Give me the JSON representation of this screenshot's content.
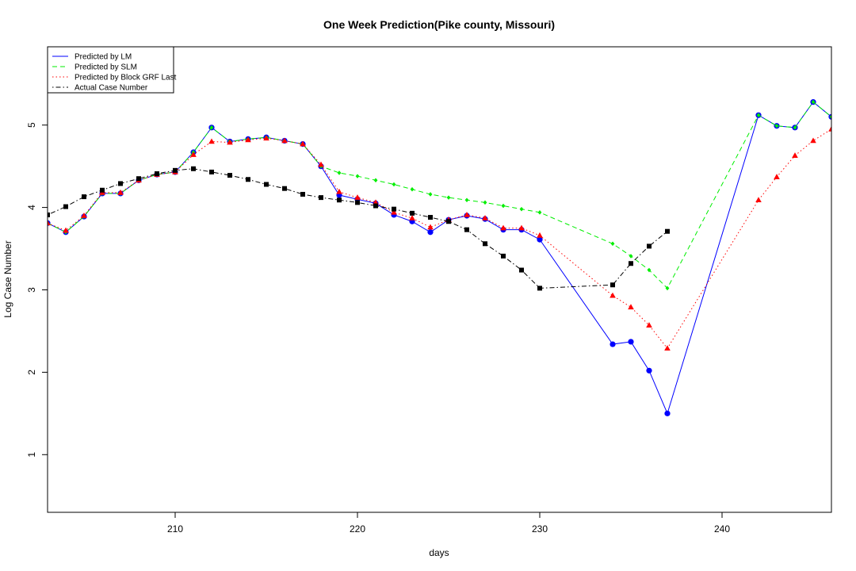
{
  "chart_data": {
    "type": "line",
    "title": "One Week Prediction(Pike county, Missouri)",
    "xlabel": "days",
    "ylabel": "Log Case Number",
    "xlim": [
      203,
      246
    ],
    "ylim": [
      0.3,
      5.95
    ],
    "xticks": [
      210,
      220,
      230,
      240
    ],
    "yticks": [
      1,
      2,
      3,
      4,
      5
    ],
    "grid": false,
    "legend_position": "top-left",
    "series": [
      {
        "name": "Predicted by LM",
        "color": "#0000ff",
        "line_style": "solid",
        "marker": "circle",
        "x": [
          203,
          204,
          205,
          206,
          207,
          208,
          209,
          210,
          211,
          212,
          213,
          214,
          215,
          216,
          217,
          218,
          219,
          220,
          221,
          222,
          223,
          224,
          225,
          226,
          227,
          228,
          229,
          230,
          234,
          235,
          236,
          237,
          242,
          243,
          244,
          245,
          246
        ],
        "y": [
          3.81,
          3.7,
          3.89,
          4.17,
          4.17,
          4.33,
          4.4,
          4.43,
          4.67,
          4.97,
          4.8,
          4.83,
          4.85,
          4.81,
          4.77,
          4.5,
          4.15,
          4.1,
          4.05,
          3.91,
          3.83,
          3.7,
          3.85,
          3.9,
          3.86,
          3.73,
          3.73,
          3.61,
          2.34,
          2.37,
          2.02,
          1.5,
          5.12,
          4.99,
          4.97,
          5.28,
          5.1
        ]
      },
      {
        "name": "Predicted by SLM",
        "color": "#00ee00",
        "line_style": "dashed",
        "marker": "diamond",
        "x": [
          203,
          204,
          205,
          206,
          207,
          208,
          209,
          210,
          211,
          212,
          213,
          214,
          215,
          216,
          217,
          218,
          219,
          220,
          221,
          222,
          223,
          224,
          225,
          226,
          227,
          228,
          229,
          230,
          234,
          235,
          236,
          237,
          242,
          243,
          244,
          245,
          246
        ],
        "y": [
          3.81,
          3.7,
          3.89,
          4.17,
          4.17,
          4.33,
          4.4,
          4.43,
          4.67,
          4.97,
          4.8,
          4.83,
          4.85,
          4.81,
          4.77,
          4.5,
          4.42,
          4.38,
          4.33,
          4.28,
          4.22,
          4.16,
          4.12,
          4.09,
          4.06,
          4.02,
          3.98,
          3.94,
          3.56,
          3.41,
          3.24,
          3.02,
          5.12,
          4.99,
          4.97,
          5.28,
          5.1
        ]
      },
      {
        "name": "Predicted by Block GRF Last",
        "color": "#ff0000",
        "line_style": "dotted",
        "marker": "triangle",
        "x": [
          203,
          204,
          205,
          206,
          207,
          208,
          209,
          210,
          211,
          212,
          213,
          214,
          215,
          216,
          217,
          218,
          219,
          220,
          221,
          222,
          223,
          224,
          225,
          226,
          227,
          228,
          229,
          230,
          234,
          235,
          236,
          237,
          242,
          243,
          244,
          245,
          246
        ],
        "y": [
          3.81,
          3.72,
          3.9,
          4.18,
          4.18,
          4.33,
          4.4,
          4.43,
          4.64,
          4.8,
          4.79,
          4.82,
          4.84,
          4.81,
          4.77,
          4.52,
          4.19,
          4.12,
          4.06,
          3.94,
          3.87,
          3.76,
          3.85,
          3.91,
          3.87,
          3.75,
          3.75,
          3.66,
          2.93,
          2.79,
          2.57,
          2.29,
          4.09,
          4.37,
          4.63,
          4.81,
          4.95
        ]
      },
      {
        "name": "Actual Case Number",
        "color": "#000000",
        "line_style": "dashdot",
        "marker": "square",
        "x": [
          203,
          204,
          205,
          206,
          207,
          208,
          209,
          210,
          211,
          212,
          213,
          214,
          215,
          216,
          217,
          218,
          219,
          220,
          221,
          222,
          223,
          224,
          225,
          226,
          227,
          228,
          229,
          230,
          234,
          235,
          236,
          237
        ],
        "y": [
          3.91,
          4.01,
          4.13,
          4.21,
          4.29,
          4.35,
          4.41,
          4.45,
          4.47,
          4.43,
          4.39,
          4.34,
          4.28,
          4.23,
          4.16,
          4.12,
          4.09,
          4.06,
          4.02,
          3.98,
          3.93,
          3.88,
          3.83,
          3.73,
          3.56,
          3.41,
          3.24,
          3.02,
          3.06,
          3.32,
          3.53,
          3.71
        ]
      }
    ]
  }
}
